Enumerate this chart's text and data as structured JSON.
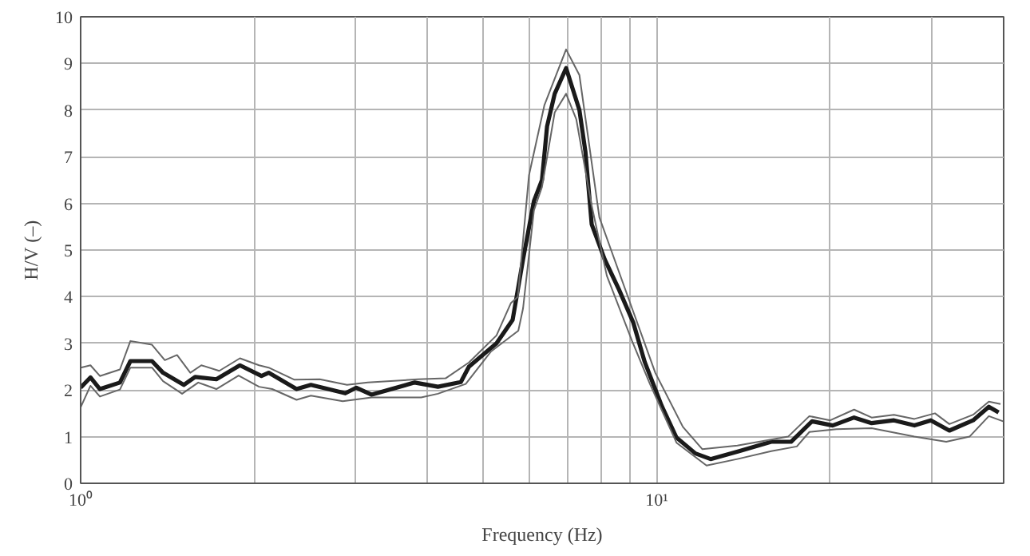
{
  "chart_data": {
    "type": "line",
    "xlabel": "Frequency (Hz)",
    "ylabel": "H/V (–)",
    "xlim": [
      1,
      40
    ],
    "ylim": [
      0,
      10
    ],
    "xticks": [
      {
        "value": 1,
        "label": "10⁰"
      },
      {
        "value": 2,
        "label": null
      },
      {
        "value": 3,
        "label": null
      },
      {
        "value": 4,
        "label": null
      },
      {
        "value": 5,
        "label": null
      },
      {
        "value": 6,
        "label": null
      },
      {
        "value": 7,
        "label": null
      },
      {
        "value": 8,
        "label": null
      },
      {
        "value": 9,
        "label": null
      },
      {
        "value": 10,
        "label": "10¹"
      },
      {
        "value": 20,
        "label": null
      },
      {
        "value": 30,
        "label": null
      }
    ],
    "yticks": [
      0,
      1,
      2,
      3,
      4,
      5,
      6,
      7,
      8,
      9,
      10
    ],
    "log": "x",
    "grid": true,
    "line_style": "solid",
    "marker": "none",
    "series": [
      {
        "color": "#1a1a1a",
        "x": [
          1.0,
          1.04,
          1.08,
          1.17,
          1.22,
          1.33,
          1.39,
          1.51,
          1.58,
          1.72,
          1.89,
          2.06,
          2.12,
          2.37,
          2.51,
          2.88,
          3.01,
          3.2,
          3.8,
          4.17,
          4.57,
          4.72,
          5.27,
          5.62,
          5.86,
          6.12,
          6.32,
          6.45,
          6.65,
          6.96,
          7.34,
          7.52,
          7.71,
          8.12,
          8.6,
          9.1,
          9.53,
          10.19,
          10.82,
          11.67,
          12.4,
          13.9,
          15.8,
          17.1,
          18.6,
          20.2,
          22.0,
          23.6,
          25.8,
          28.0,
          29.9,
          32.2,
          35.4,
          37.7,
          39.2
        ],
        "values": [
          2.05,
          2.27,
          2.02,
          2.16,
          2.62,
          2.62,
          2.37,
          2.11,
          2.28,
          2.23,
          2.53,
          2.3,
          2.37,
          2.02,
          2.11,
          1.93,
          2.05,
          1.9,
          2.16,
          2.07,
          2.17,
          2.5,
          3.0,
          3.5,
          4.8,
          6.05,
          6.5,
          7.65,
          8.35,
          8.9,
          8.0,
          7.1,
          5.55,
          4.8,
          4.15,
          3.45,
          2.6,
          1.67,
          0.98,
          0.64,
          0.52,
          0.69,
          0.89,
          0.89,
          1.33,
          1.24,
          1.41,
          1.29,
          1.35,
          1.24,
          1.35,
          1.13,
          1.35,
          1.64,
          1.52
        ]
      },
      {
        "color": "#666666",
        "x": [
          1.0,
          1.04,
          1.08,
          1.17,
          1.22,
          1.33,
          1.4,
          1.47,
          1.55,
          1.62,
          1.74,
          1.89,
          2.04,
          2.12,
          2.35,
          2.6,
          2.9,
          3.15,
          3.85,
          4.3,
          4.72,
          5.27,
          5.58,
          5.74,
          6.0,
          6.38,
          6.96,
          7.34,
          7.95,
          9.06,
          9.94,
          11.1,
          12.0,
          13.8,
          16.9,
          18.4,
          20.0,
          22.0,
          23.6,
          25.8,
          28.0,
          30.4,
          32.2,
          35.4,
          37.7,
          39.5
        ],
        "values": [
          2.48,
          2.53,
          2.3,
          2.44,
          3.05,
          2.97,
          2.64,
          2.75,
          2.37,
          2.53,
          2.41,
          2.68,
          2.53,
          2.48,
          2.22,
          2.23,
          2.11,
          2.16,
          2.23,
          2.25,
          2.59,
          3.17,
          3.86,
          4.0,
          6.6,
          8.1,
          9.3,
          8.75,
          5.7,
          3.75,
          2.37,
          1.21,
          0.73,
          0.81,
          1.0,
          1.44,
          1.35,
          1.58,
          1.41,
          1.47,
          1.38,
          1.5,
          1.27,
          1.47,
          1.75,
          1.7
        ]
      },
      {
        "color": "#666666",
        "x": [
          1.0,
          1.04,
          1.08,
          1.17,
          1.22,
          1.33,
          1.39,
          1.5,
          1.6,
          1.72,
          1.88,
          2.04,
          2.15,
          2.37,
          2.51,
          2.85,
          3.2,
          3.9,
          4.17,
          4.66,
          5.15,
          5.75,
          5.86,
          6.12,
          6.32,
          6.65,
          6.96,
          7.25,
          7.71,
          8.19,
          9.06,
          9.73,
          10.82,
          12.2,
          13.8,
          15.8,
          17.5,
          18.4,
          20.5,
          23.6,
          28.0,
          31.8,
          34.9,
          37.7,
          39.9
        ],
        "values": [
          1.63,
          2.09,
          1.86,
          2.01,
          2.48,
          2.48,
          2.19,
          1.92,
          2.16,
          2.02,
          2.31,
          2.07,
          2.02,
          1.79,
          1.88,
          1.76,
          1.84,
          1.84,
          1.92,
          2.13,
          2.82,
          3.27,
          3.75,
          5.85,
          6.35,
          7.95,
          8.35,
          7.8,
          5.95,
          4.45,
          3.05,
          2.13,
          0.87,
          0.38,
          0.52,
          0.69,
          0.79,
          1.1,
          1.16,
          1.18,
          1.0,
          0.89,
          1.0,
          1.44,
          1.33
        ]
      }
    ]
  }
}
